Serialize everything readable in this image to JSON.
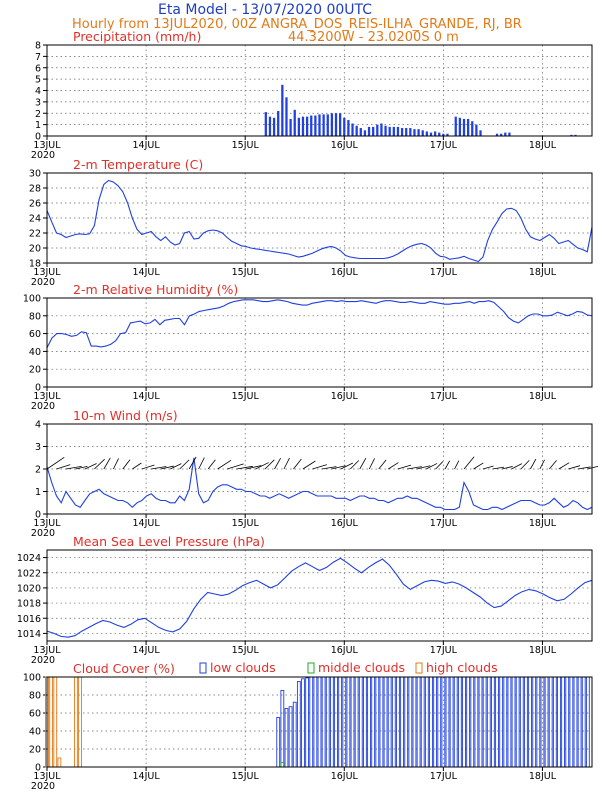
{
  "header": {
    "title": "Eta Model - 13/07/2020 00UTC",
    "run_info": "Hourly from 13JUL2020, 00Z  ANGRA_DOS_REIS-ILHA_GRANDE, RJ, BR",
    "coords": "44.3200W - 23.0200S       0  m"
  },
  "time_axis": {
    "hours": 132,
    "day_labels": [
      "13JUL",
      "14JUL",
      "15JUL",
      "16JUL",
      "17JUL",
      "18JUL"
    ],
    "year_label": "2020"
  },
  "colors": {
    "line": "#2040e0",
    "arrow": "#000000",
    "low": "#2040e0",
    "middle": "#1faa1f",
    "high": "#e07b1a",
    "panel_title": "#e0302a"
  },
  "chart_data": [
    {
      "type": "bar",
      "title": "Precipitation (mm/h)",
      "ylim": [
        0,
        8
      ],
      "yticks": [
        0,
        1,
        2,
        3,
        4,
        5,
        6,
        7,
        8
      ],
      "values": [
        0,
        0,
        0,
        0,
        0,
        0,
        0,
        0,
        0,
        0,
        0,
        0,
        0,
        0,
        0,
        0,
        0,
        0,
        0,
        0,
        0,
        0,
        0,
        0,
        0,
        0,
        0,
        0,
        0,
        0,
        0,
        0,
        0,
        0,
        0,
        0,
        0,
        0,
        0,
        0,
        0,
        0,
        0,
        0,
        0,
        0,
        0,
        0,
        0,
        0,
        0,
        0,
        0,
        2.1,
        1.7,
        1.6,
        2.2,
        4.5,
        3.4,
        1.5,
        2.3,
        1.6,
        1.7,
        1.7,
        1.8,
        1.8,
        1.9,
        1.9,
        1.9,
        2.0,
        2.0,
        2.0,
        1.6,
        1.4,
        1.1,
        0.9,
        0.7,
        0.5,
        0.8,
        0.8,
        1.0,
        1.1,
        0.9,
        0.8,
        0.8,
        0.8,
        0.7,
        0.7,
        0.7,
        0.6,
        0.6,
        0.5,
        0.4,
        0.3,
        0.4,
        0.3,
        0.2,
        0.2,
        0,
        1.7,
        1.6,
        1.5,
        1.5,
        1.3,
        1.0,
        0.5,
        0,
        0,
        0,
        0.2,
        0.2,
        0.3,
        0.3,
        0,
        0,
        0,
        0,
        0,
        0,
        0,
        0,
        0,
        0,
        0,
        0,
        0,
        0,
        0.1,
        0.1,
        0,
        0,
        0,
        0,
        0,
        0,
        0
      ]
    },
    {
      "type": "line",
      "title": "2-m Temperature (C)",
      "ylim": [
        18,
        30
      ],
      "yticks": [
        18,
        20,
        22,
        24,
        26,
        28,
        30
      ],
      "values": [
        25.0,
        23.5,
        22.0,
        21.8,
        21.4,
        21.6,
        21.8,
        21.9,
        21.8,
        21.9,
        23.0,
        26.5,
        28.5,
        29.0,
        28.8,
        28.3,
        27.5,
        26.0,
        24.0,
        22.5,
        21.8,
        22.0,
        22.2,
        21.5,
        21.0,
        21.5,
        20.8,
        20.4,
        20.6,
        22.0,
        22.2,
        21.2,
        21.3,
        22.0,
        22.3,
        22.4,
        22.3,
        22.0,
        21.4,
        20.9,
        20.6,
        20.3,
        20.2,
        20.0,
        19.9,
        19.8,
        19.7,
        19.6,
        19.5,
        19.4,
        19.3,
        19.2,
        19.0,
        18.8,
        18.9,
        19.1,
        19.3,
        19.6,
        19.9,
        20.1,
        20.2,
        20.0,
        19.6,
        19.0,
        18.8,
        18.7,
        18.6,
        18.6,
        18.6,
        18.6,
        18.6,
        18.6,
        18.7,
        18.9,
        19.2,
        19.6,
        20.0,
        20.3,
        20.5,
        20.6,
        20.4,
        20.0,
        19.3,
        18.9,
        18.8,
        18.5,
        18.6,
        18.7,
        18.9,
        18.6,
        18.4,
        18.2,
        18.8,
        21.0,
        22.5,
        23.5,
        24.6,
        25.2,
        25.3,
        25.0,
        24.0,
        22.5,
        21.5,
        21.2,
        21.0,
        21.4,
        21.8,
        21.3,
        20.6,
        20.8,
        21.0,
        20.5,
        20.0,
        19.8,
        19.5,
        22.8
      ]
    },
    {
      "type": "line",
      "title": "2-m Relative Humidity (%)",
      "ylim": [
        0,
        100
      ],
      "yticks": [
        0,
        20,
        40,
        60,
        80,
        100
      ],
      "values": [
        44,
        55,
        60,
        60,
        59,
        57,
        58,
        62,
        61,
        46,
        46,
        45,
        46,
        48,
        52,
        60,
        61,
        72,
        73,
        74,
        71,
        72,
        76,
        70,
        75,
        76,
        77,
        77,
        70,
        80,
        82,
        85,
        86,
        87,
        88,
        89,
        91,
        94,
        96,
        97,
        98,
        98,
        98,
        97,
        96,
        96,
        97,
        98,
        97,
        96,
        94,
        93,
        92,
        92,
        94,
        95,
        96,
        97,
        97,
        96,
        97,
        96,
        96,
        96,
        97,
        96,
        95,
        94,
        96,
        97,
        97,
        96,
        95,
        95,
        96,
        95,
        94,
        94,
        96,
        95,
        94,
        93,
        93,
        94,
        94,
        95,
        96,
        94,
        96,
        96,
        97,
        95,
        90,
        85,
        78,
        74,
        72,
        76,
        80,
        82,
        82,
        80,
        80,
        81,
        84,
        82,
        80,
        82,
        85,
        84,
        81,
        80
      ]
    },
    {
      "type": "line",
      "title": "10-m Wind (m/s)",
      "ylim": [
        0,
        4
      ],
      "yticks": [
        0,
        1,
        2,
        3,
        4
      ],
      "values": [
        2.1,
        1.4,
        0.8,
        0.5,
        1.0,
        0.7,
        0.4,
        0.3,
        0.6,
        0.9,
        1.0,
        1.1,
        0.9,
        0.8,
        0.7,
        0.6,
        0.6,
        0.5,
        0.3,
        0.5,
        0.6,
        0.8,
        0.9,
        0.7,
        0.6,
        0.6,
        0.5,
        0.5,
        0.8,
        0.6,
        1.1,
        2.5,
        0.9,
        0.5,
        0.6,
        1.0,
        1.2,
        1.3,
        1.3,
        1.2,
        1.1,
        1.1,
        1.0,
        1.0,
        0.9,
        0.8,
        0.8,
        0.7,
        0.8,
        0.9,
        0.8,
        0.7,
        0.8,
        0.9,
        1.0,
        1.0,
        0.9,
        0.8,
        0.8,
        0.8,
        0.8,
        0.7,
        0.7,
        0.7,
        0.6,
        0.7,
        0.8,
        0.8,
        0.7,
        0.7,
        0.6,
        0.6,
        0.5,
        0.6,
        0.7,
        0.7,
        0.8,
        0.7,
        0.7,
        0.6,
        0.5,
        0.4,
        0.3,
        0.3,
        0.2,
        0.2,
        0.2,
        0.3,
        1.4,
        1.0,
        0.4,
        0.3,
        0.2,
        0.2,
        0.3,
        0.3,
        0.2,
        0.3,
        0.4,
        0.5,
        0.6,
        0.6,
        0.6,
        0.5,
        0.4,
        0.4,
        0.5,
        0.7,
        0.5,
        0.3,
        0.4,
        0.6,
        0.5,
        0.3,
        0.2,
        0.3
      ]
    },
    {
      "type": "line",
      "title": "Mean Sea Level Pressure (hPa)",
      "ylim": [
        1013,
        1025
      ],
      "yticks": [
        1014,
        1016,
        1018,
        1020,
        1022,
        1024
      ],
      "values": [
        1014.3,
        1014.0,
        1013.6,
        1013.5,
        1013.7,
        1014.3,
        1014.8,
        1015.3,
        1015.7,
        1015.5,
        1015.1,
        1014.8,
        1015.2,
        1015.8,
        1016.0,
        1015.4,
        1014.8,
        1014.4,
        1014.2,
        1014.6,
        1015.6,
        1017.2,
        1018.5,
        1019.4,
        1019.2,
        1019.0,
        1019.2,
        1019.7,
        1020.3,
        1020.7,
        1021.0,
        1020.5,
        1020.0,
        1020.4,
        1021.3,
        1022.2,
        1022.8,
        1023.3,
        1022.8,
        1022.3,
        1022.7,
        1023.4,
        1023.9,
        1023.3,
        1022.6,
        1022.0,
        1022.7,
        1023.3,
        1023.8,
        1023.0,
        1021.8,
        1020.5,
        1019.8,
        1020.3,
        1020.8,
        1021.0,
        1020.9,
        1020.6,
        1020.8,
        1020.5,
        1020.0,
        1019.4,
        1018.8,
        1018.0,
        1017.4,
        1017.6,
        1018.3,
        1019.0,
        1019.5,
        1019.8,
        1019.6,
        1019.2,
        1018.7,
        1018.3,
        1018.5,
        1019.2,
        1020.0,
        1020.7,
        1021.0
      ]
    },
    {
      "type": "bar",
      "title": "Cloud Cover (%)",
      "ylim": [
        0,
        100
      ],
      "yticks": [
        0,
        20,
        40,
        60,
        80,
        100
      ],
      "series": [
        {
          "name": "low clouds",
          "values": [
            0,
            0,
            0,
            0,
            0,
            0,
            0,
            0,
            0,
            0,
            0,
            0,
            0,
            0,
            0,
            0,
            0,
            0,
            0,
            0,
            0,
            0,
            0,
            0,
            0,
            0,
            0,
            0,
            0,
            0,
            0,
            0,
            0,
            0,
            0,
            0,
            0,
            0,
            0,
            0,
            0,
            0,
            0,
            0,
            0,
            0,
            0,
            0,
            0,
            0,
            0,
            0,
            0,
            0,
            0,
            0,
            55,
            85,
            65,
            67,
            72,
            95,
            98,
            99,
            100,
            100,
            100,
            100,
            100,
            100,
            100,
            100,
            100,
            100,
            100,
            100,
            100,
            100,
            100,
            100,
            100,
            100,
            100,
            100,
            100,
            100,
            100,
            100,
            100,
            100,
            100,
            100,
            100,
            100,
            100,
            100,
            100,
            100,
            100,
            100,
            100,
            100,
            100,
            100,
            100,
            100,
            100,
            100,
            100,
            100,
            100,
            100,
            100,
            100,
            100,
            100,
            100,
            100,
            100,
            100,
            100,
            100,
            100,
            100,
            100,
            100,
            100,
            100,
            100,
            100,
            100,
            100
          ]
        },
        {
          "name": "middle clouds",
          "values": [
            0,
            0,
            0,
            0,
            0,
            0,
            0,
            0,
            0,
            0,
            0,
            0,
            0,
            0,
            0,
            0,
            0,
            0,
            0,
            0,
            0,
            0,
            0,
            0,
            0,
            0,
            0,
            0,
            0,
            0,
            0,
            0,
            0,
            0,
            0,
            0,
            0,
            0,
            0,
            0,
            0,
            0,
            0,
            0,
            0,
            0,
            0,
            0,
            0,
            0,
            0,
            0,
            0,
            0,
            0,
            0,
            0,
            5,
            0,
            0,
            0,
            0,
            0,
            0,
            0,
            0,
            0,
            0,
            0,
            0,
            0,
            0,
            0,
            0,
            0,
            0,
            0,
            0,
            0,
            0,
            0,
            0,
            0,
            0,
            0,
            0,
            0,
            0,
            0,
            0,
            0,
            0,
            0,
            0,
            0,
            0,
            0,
            0,
            0,
            0,
            0,
            0,
            0,
            0,
            0,
            0,
            0,
            0,
            0,
            0,
            0,
            0,
            0,
            0,
            0,
            0,
            0,
            0,
            0,
            0,
            0,
            0,
            0,
            0,
            0,
            0,
            0,
            0,
            0,
            0,
            0,
            0
          ]
        },
        {
          "name": "high clouds",
          "values": [
            100,
            100,
            100,
            10,
            0,
            0,
            0,
            100,
            100,
            0,
            0,
            0,
            0,
            0,
            0,
            0,
            0,
            0,
            0,
            0,
            0,
            0,
            0,
            0,
            0,
            0,
            0,
            0,
            0,
            0,
            0,
            0,
            0,
            0,
            0,
            0,
            0,
            0,
            0,
            0,
            0,
            0,
            0,
            0,
            0,
            0,
            0,
            0,
            0,
            0,
            0,
            0,
            0,
            0,
            0,
            0,
            0,
            0,
            0,
            0,
            0,
            0,
            0,
            0,
            0,
            0,
            0,
            0,
            0,
            0,
            0,
            0,
            0,
            0,
            0,
            0,
            0,
            0,
            0,
            0,
            0,
            0,
            0,
            0,
            0,
            0,
            0,
            0,
            0,
            0,
            0,
            0,
            0,
            0,
            0,
            0,
            0,
            0,
            0,
            0,
            0,
            0,
            0,
            0,
            0,
            0,
            0,
            0,
            0,
            0,
            0,
            0,
            0,
            0,
            0,
            0,
            0,
            0,
            0,
            0,
            0,
            0,
            0,
            0,
            0,
            0,
            0,
            0,
            0,
            0,
            0,
            0
          ]
        }
      ],
      "legend": [
        "low clouds",
        "middle clouds",
        "high clouds"
      ]
    }
  ]
}
